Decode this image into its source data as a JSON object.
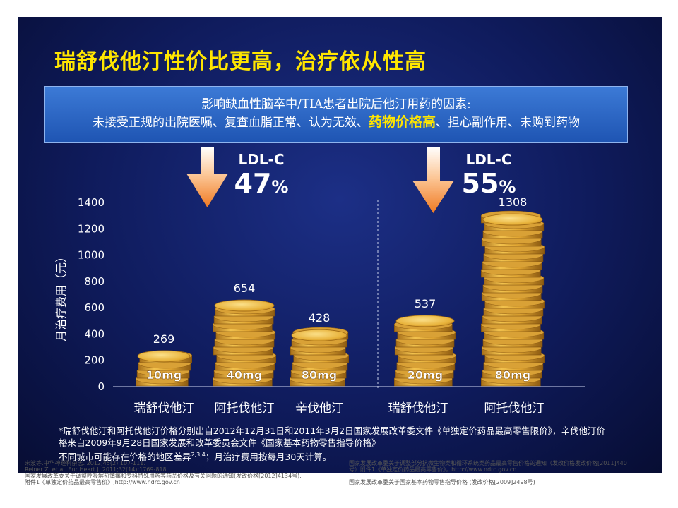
{
  "title": "瑞舒伐他汀性价比更高，治疗依从性高",
  "infobox": {
    "line1": "影响缺血性脑卒中/TIA患者出院后他汀用药的因素:",
    "line2_pre": "未接受正规的出院医嘱、复查血脂正常、认为无效、",
    "line2_highlight": "药物价格高",
    "line2_post": "、担心副作用、未购到药物"
  },
  "ldl_left": {
    "label": "LDL-C",
    "value": "47",
    "unit": "%"
  },
  "ldl_right": {
    "label": "LDL-C",
    "value": "55",
    "unit": "%"
  },
  "chart_data": {
    "type": "bar",
    "ylabel": "月治疗费用（元）",
    "ylim": [
      0,
      1400
    ],
    "yticks": [
      0,
      200,
      400,
      600,
      800,
      1000,
      1200,
      1400
    ],
    "grid": false,
    "categories": [
      "瑞舒伐他汀",
      "阿托伐他汀",
      "辛伐他汀",
      "瑞舒伐他汀",
      "阿托伐他汀"
    ],
    "values": [
      269,
      654,
      428,
      537,
      1308
    ],
    "doses": [
      "10mg",
      "40mg",
      "80mg",
      "20mg",
      "80mg"
    ],
    "value_labels": [
      "269",
      "654",
      "428",
      "537",
      "1308"
    ]
  },
  "notes": {
    "line1": "*瑞舒伐他汀和阿托伐他汀价格分别出自2012年12月31日和2011年3月2日国家发展改革委文件《单独定价药品最高零售限价》，辛伐他汀价",
    "line2": "格来自2009年9月28日国家发展和改革委员会文件《国家基本药物零售指导价格》",
    "line3_pre": "不同城市可能存在价格的地区差异",
    "line3_sup": "2,3,4",
    "line3_post": "；月治疗费用按每月30天计算。"
  },
  "refs_left": [
    "宋波等.中华神经科杂志. 2012;45(2):107-111.",
    "Reiner Z, et al. Eur Heart J. 2011;32(14):1769-818",
    "国家发展改革委关于调整呼吸解热镇痛和专科特殊用药等药品价格及有关问题的通知(发改价格[2012]4134号),",
    "附件1《单独定价药品最高零售价》,http://www.ndrc.gov.cn"
  ],
  "refs_right": [
    "国家发展改革委关于调整部分抗微生物类和循环系统类药品最高零售价格的通知（发改价格发改价格[2011]440",
    "号）附件1《单独定价药品最高零售价》，http://www.ndrc.gov.cn",
    "",
    "国家发展改革委关于国家基本药物零售指导价格 (发改价格[2009]2498号)"
  ],
  "colors": {
    "slide_bg": "#0f1b5c",
    "title": "#ffe600",
    "infobox": "#2a64c4",
    "coin": "#e8b23a",
    "arrow": "#f07a22"
  }
}
